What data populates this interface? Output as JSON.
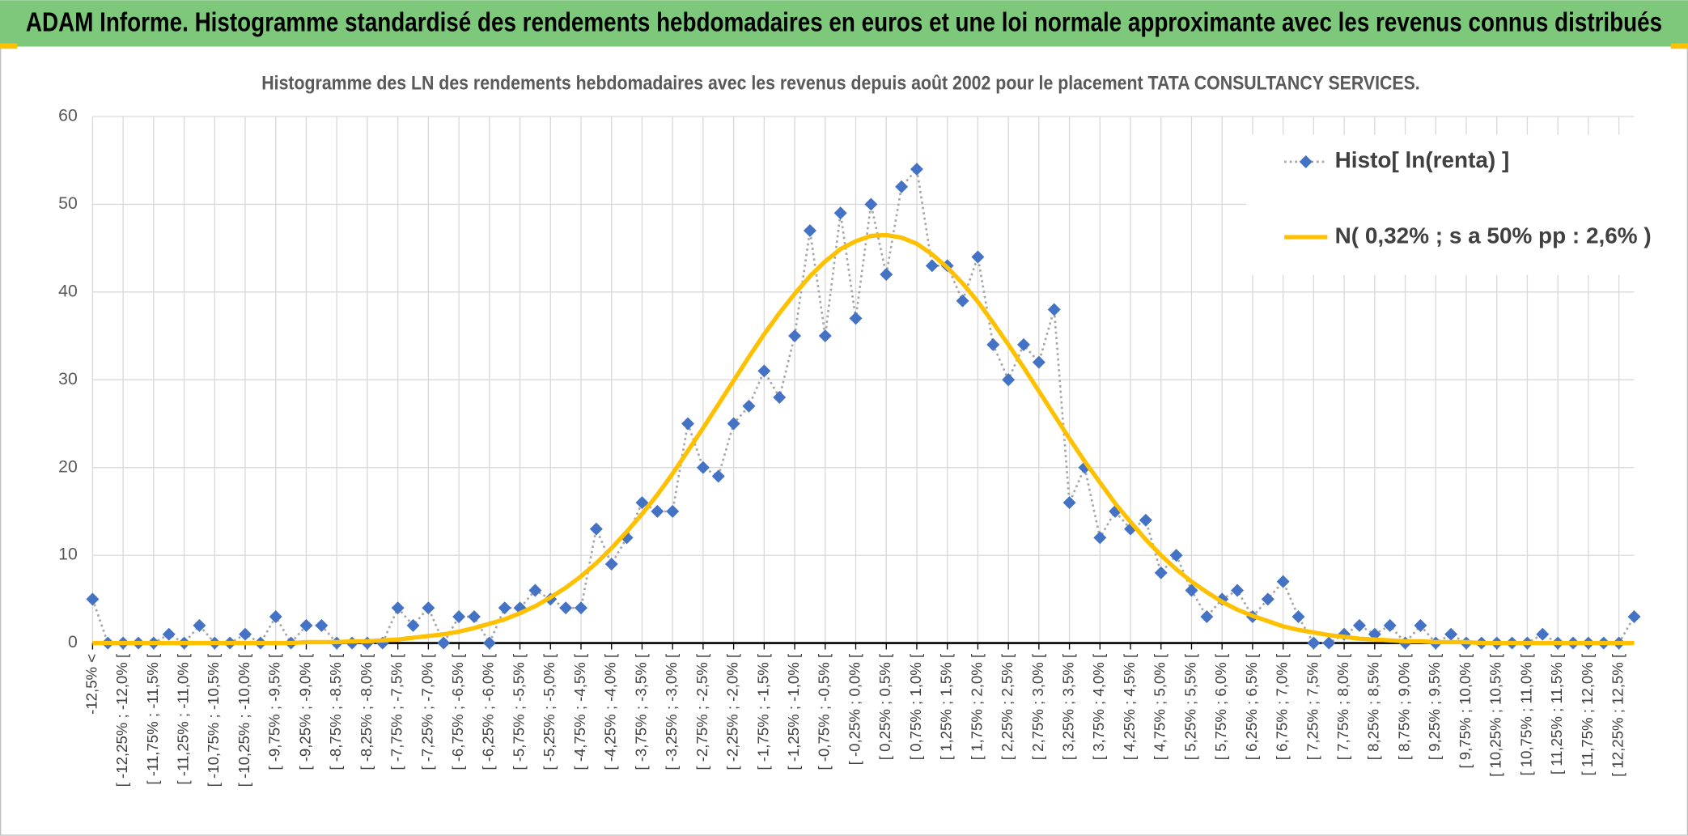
{
  "header": {
    "title": "ADAM Informe. Histogramme standardisé des rendements hebdomadaires en euros et une loi normale approximante avec les revenus connus distribués"
  },
  "chart_data": {
    "type": "line",
    "title": "Histogramme des LN des rendements hebdomadaires avec les revenus depuis août 2002 pour le placement TATA CONSULTANCY SERVICES.",
    "categories": [
      "-12,5% <",
      null,
      "[ -12,25% ; -12,0% [",
      null,
      "[ -11,75% ; -11,5% [",
      null,
      "[ -11,25% ; -11,0% [",
      null,
      "[ -10,75% ; -10,5% [",
      null,
      "[ -10,25% ; -10,0% [",
      null,
      "[ -9,75% ; -9,5% [",
      null,
      "[ -9,25% ; -9,0% [",
      null,
      "[ -8,75% ; -8,5% [",
      null,
      "[ -8,25% ; -8,0% [",
      null,
      "[ -7,75% ; -7,5% [",
      null,
      "[ -7,25% ; -7,0% [",
      null,
      "[ -6,75% ; -6,5% [",
      null,
      "[ -6,25% ; -6,0% [",
      null,
      "[ -5,75% ; -5,5% [",
      null,
      "[ -5,25% ; -5,0% [",
      null,
      "[ -4,75% ; -4,5% [",
      null,
      "[ -4,25% ; -4,0% [",
      null,
      "[ -3,75% ; -3,5% [",
      null,
      "[ -3,25% ; -3,0% [",
      null,
      "[ -2,75% ; -2,5% [",
      null,
      "[ -2,25% ; -2,0% [",
      null,
      "[ -1,75% ; -1,5% [",
      null,
      "[ -1,25% ; -1,0% [",
      null,
      "[ -0,75% ; -0,5% [",
      null,
      "[ -0,25% ; 0,0% [",
      null,
      "[ 0,25% ; 0,5% [",
      null,
      "[ 0,75% ; 1,0% [",
      null,
      "[ 1,25% ; 1,5% [",
      null,
      "[ 1,75% ; 2,0% [",
      null,
      "[ 2,25% ; 2,5% [",
      null,
      "[ 2,75% ; 3,0% [",
      null,
      "[ 3,25% ; 3,5% [",
      null,
      "[ 3,75% ; 4,0% [",
      null,
      "[ 4,25% ; 4,5% [",
      null,
      "[ 4,75% ; 5,0% [",
      null,
      "[ 5,25% ; 5,5% [",
      null,
      "[ 5,75% ; 6,0% [",
      null,
      "[ 6,25% ; 6,5% [",
      null,
      "[ 6,75% ; 7,0% [",
      null,
      "[ 7,25% ; 7,5% [",
      null,
      "[ 7,75% ; 8,0% [",
      null,
      "[ 8,25% ; 8,5% [",
      null,
      "[ 8,75% ; 9,0% [",
      null,
      "[ 9,25% ; 9,5% [",
      null,
      "[ 9,75% ; 10,0% [",
      null,
      "[ 10,25% ; 10,5% [",
      null,
      "[ 10,75% ; 11,0% [",
      null,
      "[ 11,25% ; 11,5% [",
      null,
      "[ 11,75% ; 12,0% [",
      null,
      "[ 12,25% ; 12,5% [",
      null
    ],
    "series": [
      {
        "name": "Histo[ ln(renta) ]",
        "color": "#4472c4",
        "line_color": "#a6a6a6",
        "values": [
          5,
          0,
          0,
          0,
          0,
          1,
          0,
          2,
          0,
          0,
          1,
          0,
          3,
          0,
          2,
          2,
          0,
          0,
          0,
          0,
          4,
          2,
          4,
          0,
          3,
          3,
          0,
          4,
          4,
          6,
          5,
          4,
          4,
          13,
          9,
          12,
          16,
          15,
          15,
          25,
          20,
          19,
          25,
          27,
          31,
          28,
          35,
          47,
          35,
          49,
          37,
          50,
          42,
          52,
          54,
          43,
          43,
          39,
          44,
          34,
          30,
          34,
          32,
          38,
          16,
          20,
          12,
          15,
          13,
          14,
          8,
          10,
          6,
          3,
          5,
          6,
          3,
          5,
          7,
          3,
          0,
          0,
          1,
          2,
          1,
          2,
          0,
          2,
          0,
          1,
          0,
          0,
          0,
          0,
          0,
          1,
          0,
          0,
          0,
          0,
          0,
          3
        ]
      },
      {
        "name": "N( 0,32% ; s a 50% pp : 2,6% )",
        "color": "#ffc000",
        "values": [
          0,
          0,
          0,
          0,
          0,
          0,
          0,
          0,
          0,
          0,
          0,
          0,
          0,
          0,
          0.1,
          0.1,
          0.1,
          0.2,
          0.2,
          0.3,
          0.4,
          0.6,
          0.8,
          1.0,
          1.3,
          1.7,
          2.2,
          2.7,
          3.4,
          4.2,
          5.2,
          6.3,
          7.6,
          9.1,
          10.8,
          12.7,
          14.7,
          16.9,
          19.3,
          21.9,
          24.5,
          27.2,
          29.9,
          32.6,
          35.2,
          37.6,
          39.8,
          41.8,
          43.5,
          44.9,
          45.8,
          46.4,
          46.5,
          46.2,
          45.5,
          44.3,
          42.8,
          41.0,
          38.9,
          36.5,
          34.0,
          31.4,
          28.7,
          26.0,
          23.3,
          20.7,
          18.3,
          15.9,
          13.8,
          11.8,
          10.0,
          8.4,
          7.0,
          5.8,
          4.7,
          3.8,
          3.1,
          2.5,
          1.9,
          1.5,
          1.2,
          0.9,
          0.7,
          0.5,
          0.4,
          0.3,
          0.2,
          0.2,
          0.1,
          0.1,
          0.1,
          0,
          0,
          0,
          0,
          0,
          0,
          0,
          0,
          0,
          0,
          0
        ]
      }
    ],
    "ylim": [
      0,
      60
    ],
    "yticks": [
      0,
      10,
      20,
      30,
      40,
      50,
      60
    ],
    "grid": true,
    "legend": "upper right"
  }
}
